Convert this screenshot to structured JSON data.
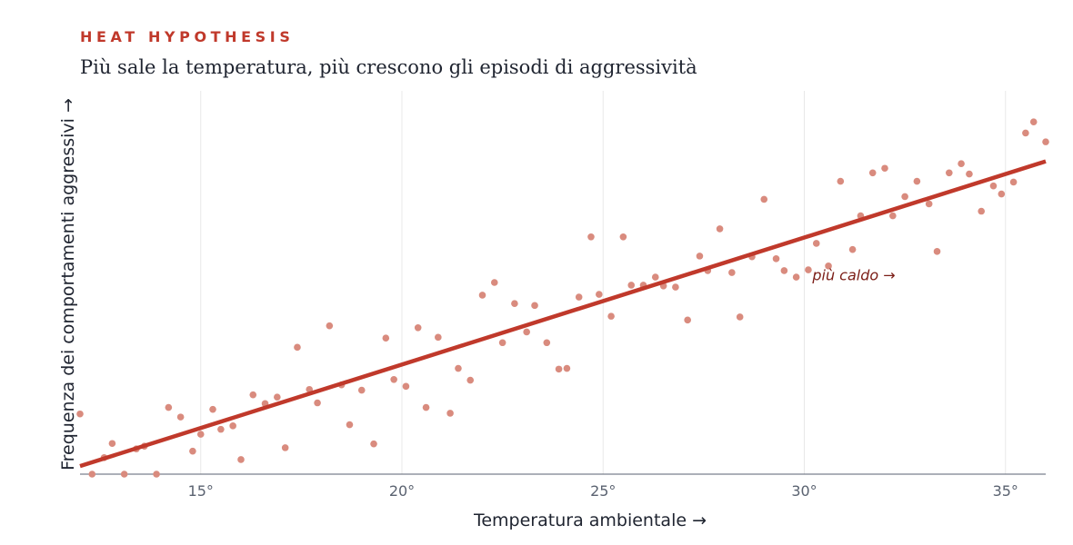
{
  "header": {
    "kicker": "HEAT HYPOTHESIS",
    "title": "Più sale la temperatura, più crescono gli episodi di aggressività"
  },
  "colors": {
    "kicker": "#c0392b",
    "trend_line": "#c0392b",
    "points": "#d98b7e",
    "annotation": "#7b1d16",
    "axis": "#5a6270",
    "grid": "#e8e8e8"
  },
  "chart_data": {
    "type": "scatter",
    "xlabel": "Temperatura ambientale  →",
    "ylabel": "Frequenza dei comportamenti aggressivi  →",
    "xlim": [
      12,
      36
    ],
    "ylim": [
      0,
      100
    ],
    "x_ticks": [
      15,
      20,
      25,
      30,
      35
    ],
    "x_tick_labels": [
      "15°",
      "20°",
      "25°",
      "30°",
      "35°"
    ],
    "grid": "vertical",
    "trend": {
      "x": [
        12,
        36
      ],
      "y": [
        2.1,
        81.6
      ]
    },
    "annotation": {
      "text": "più caldo →",
      "x": 30.2,
      "y": 51.8
    },
    "points": [
      [
        12,
        15.7
      ],
      [
        12.3,
        0
      ],
      [
        12.6,
        4.3
      ],
      [
        12.8,
        8
      ],
      [
        13.1,
        0
      ],
      [
        13.4,
        6.6
      ],
      [
        13.6,
        7.3
      ],
      [
        13.9,
        0
      ],
      [
        14.2,
        17.4
      ],
      [
        14.5,
        14.9
      ],
      [
        14.8,
        6
      ],
      [
        15,
        10.4
      ],
      [
        15.3,
        16.9
      ],
      [
        15.5,
        11.7
      ],
      [
        15.8,
        12.6
      ],
      [
        16,
        3.8
      ],
      [
        16.3,
        20.7
      ],
      [
        16.6,
        18.4
      ],
      [
        16.9,
        20.1
      ],
      [
        17.1,
        6.9
      ],
      [
        17.4,
        33.1
      ],
      [
        17.7,
        22.1
      ],
      [
        17.9,
        18.6
      ],
      [
        18.2,
        38.7
      ],
      [
        18.5,
        23.3
      ],
      [
        18.7,
        12.9
      ],
      [
        19,
        21.9
      ],
      [
        19.3,
        7.9
      ],
      [
        19.6,
        35.5
      ],
      [
        19.8,
        24.7
      ],
      [
        20.1,
        22.9
      ],
      [
        20.4,
        38.2
      ],
      [
        20.6,
        17.4
      ],
      [
        20.9,
        35.7
      ],
      [
        21.2,
        15.9
      ],
      [
        21.4,
        27.6
      ],
      [
        21.7,
        24.5
      ],
      [
        22,
        46.7
      ],
      [
        22.3,
        50
      ],
      [
        22.5,
        34.3
      ],
      [
        22.8,
        44.5
      ],
      [
        23.1,
        37.1
      ],
      [
        23.3,
        44
      ],
      [
        23.6,
        34.3
      ],
      [
        23.9,
        27.4
      ],
      [
        24.1,
        27.6
      ],
      [
        24.4,
        46.2
      ],
      [
        24.7,
        61.9
      ],
      [
        24.9,
        46.9
      ],
      [
        25.2,
        41.2
      ],
      [
        25.5,
        61.9
      ],
      [
        25.7,
        49.3
      ],
      [
        26,
        49.3
      ],
      [
        26.3,
        51.4
      ],
      [
        26.5,
        49.1
      ],
      [
        26.8,
        48.8
      ],
      [
        27.1,
        40.2
      ],
      [
        27.4,
        56.9
      ],
      [
        27.6,
        53.1
      ],
      [
        27.9,
        64
      ],
      [
        28.2,
        52.6
      ],
      [
        28.4,
        41
      ],
      [
        28.7,
        56.7
      ],
      [
        29,
        71.7
      ],
      [
        29.3,
        56.2
      ],
      [
        29.5,
        53.1
      ],
      [
        29.8,
        51.4
      ],
      [
        30.1,
        53.3
      ],
      [
        30.3,
        60.2
      ],
      [
        30.6,
        54.3
      ],
      [
        30.9,
        76.4
      ],
      [
        31.2,
        58.6
      ],
      [
        31.4,
        67.4
      ],
      [
        31.7,
        78.6
      ],
      [
        32,
        79.8
      ],
      [
        32.2,
        67.4
      ],
      [
        32.5,
        72.4
      ],
      [
        32.8,
        76.4
      ],
      [
        33.1,
        70.5
      ],
      [
        33.3,
        58.1
      ],
      [
        33.6,
        78.6
      ],
      [
        33.9,
        81
      ],
      [
        34.1,
        78.3
      ],
      [
        34.4,
        68.6
      ],
      [
        34.7,
        75.2
      ],
      [
        34.9,
        73.1
      ],
      [
        35.2,
        76.2
      ],
      [
        35.5,
        89
      ],
      [
        35.7,
        91.9
      ],
      [
        36,
        86.7
      ]
    ]
  }
}
